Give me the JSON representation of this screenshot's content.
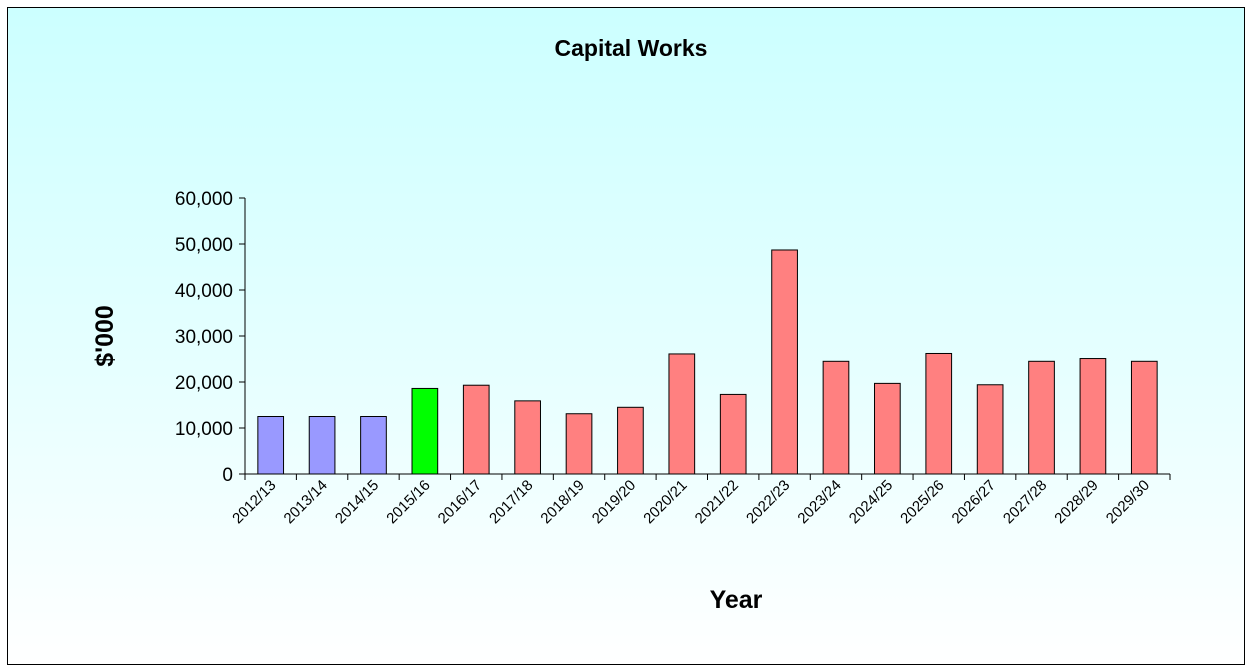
{
  "chart_data": {
    "type": "bar",
    "title": "Capital Works",
    "xlabel": "Year",
    "ylabel": "$'000",
    "ylim": [
      0,
      60000
    ],
    "yticks": [
      0,
      10000,
      20000,
      30000,
      40000,
      50000,
      60000
    ],
    "ytick_labels": [
      "0",
      "10,000",
      "20,000",
      "30,000",
      "40,000",
      "50,000",
      "60,000"
    ],
    "categories": [
      "2012/13",
      "2013/14",
      "2014/15",
      "2015/16",
      "2016/17",
      "2017/18",
      "2018/19",
      "2019/20",
      "2020/21",
      "2021/22",
      "2022/23",
      "2023/24",
      "2024/25",
      "2025/26",
      "2026/27",
      "2027/28",
      "2028/29",
      "2029/30"
    ],
    "values": [
      12500,
      12500,
      12500,
      18600,
      19300,
      15900,
      13100,
      14500,
      26100,
      17300,
      48700,
      24500,
      19700,
      26200,
      19400,
      24500,
      25100,
      24500
    ],
    "bar_colors": [
      "#9999ff",
      "#9999ff",
      "#9999ff",
      "#00ff00",
      "#ff8080",
      "#ff8080",
      "#ff8080",
      "#ff8080",
      "#ff8080",
      "#ff8080",
      "#ff8080",
      "#ff8080",
      "#ff8080",
      "#ff8080",
      "#ff8080",
      "#ff8080",
      "#ff8080",
      "#ff8080"
    ],
    "grid": false,
    "legend": "none"
  },
  "colors": {
    "background_top": "#ccffff",
    "background_bottom": "#ffffff",
    "bar_outline": "#000000"
  }
}
